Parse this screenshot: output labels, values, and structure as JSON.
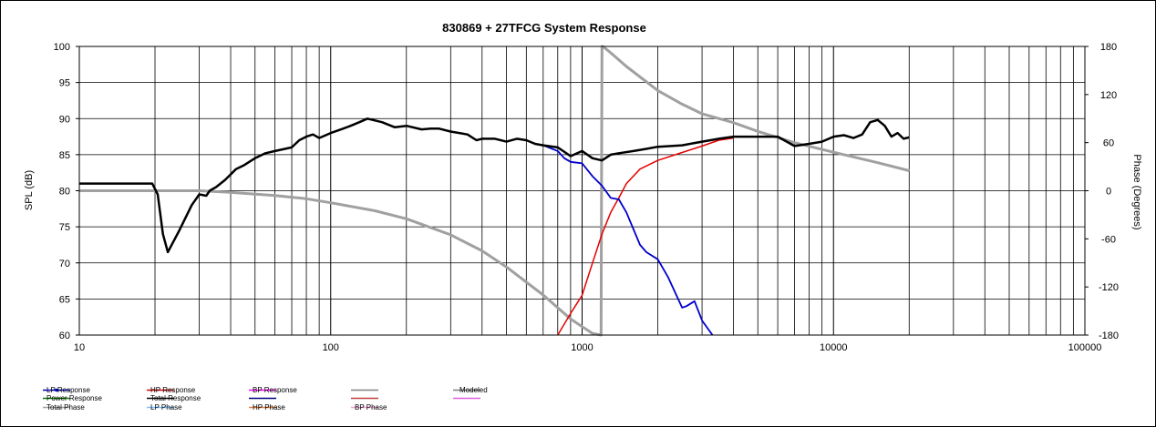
{
  "chart_data": {
    "type": "line",
    "title": "830869 + 27TFCG     System Response",
    "ylabel": "SPL (dB)",
    "y2label": "Phase (Degrees)",
    "xscale": "log",
    "xlim": [
      10,
      100000
    ],
    "ylim": [
      60,
      100
    ],
    "y2lim": [
      -180,
      180
    ],
    "x_ticks": [
      10,
      100,
      1000,
      10000,
      100000
    ],
    "x_tick_labels": [
      "10",
      "100",
      "1000",
      "10000",
      "100000"
    ],
    "y_ticks": [
      60,
      65,
      70,
      75,
      80,
      85,
      90,
      95,
      100
    ],
    "y_tick_labels": [
      "60",
      "65",
      "70",
      "75",
      "80",
      "85",
      "90",
      "95",
      "100"
    ],
    "y2_ticks": [
      -180,
      -120,
      -60,
      0,
      60,
      120,
      180
    ],
    "y2_tick_labels": [
      "-180",
      "-120",
      "-60",
      "0",
      "60",
      "120",
      "180"
    ],
    "grid": true,
    "legend_position": "bottom",
    "legend": [
      {
        "name": "LP Response",
        "color": "#0000cc",
        "marker": true
      },
      {
        "name": "HP Response",
        "color": "#e60000",
        "marker": false
      },
      {
        "name": "BP Response",
        "color": "#ff00ff",
        "marker": false
      },
      {
        "name": "",
        "color": "#808080",
        "marker": false
      },
      {
        "name": "Modeled",
        "color": "#808080",
        "marker": false
      },
      {
        "name": "Power Response",
        "color": "#008000",
        "marker": false
      },
      {
        "name": "Total Response",
        "color": "#000000",
        "marker": false
      },
      {
        "name": "",
        "color": "#000080",
        "marker": false
      },
      {
        "name": "",
        "color": "#c04040",
        "marker": false
      },
      {
        "name": "",
        "color": "#e060e0",
        "marker": false
      },
      {
        "name": "Total Phase",
        "color": "#a0a0a0",
        "marker": false
      },
      {
        "name": "LP Phase",
        "color": "#80c0ff",
        "marker": false
      },
      {
        "name": "HP Phase",
        "color": "#e08040",
        "marker": false
      },
      {
        "name": "BP Phase",
        "color": "#f0a0d0",
        "marker": false
      }
    ],
    "series": [
      {
        "name": "Total Response",
        "axis": "left",
        "color": "#000000",
        "width": 2.5,
        "x": [
          10,
          19.5,
          20.5,
          21.5,
          22.5,
          25,
          28,
          30,
          32,
          33,
          35,
          38,
          42,
          45,
          50,
          55,
          60,
          70,
          75,
          80,
          85,
          90,
          100,
          110,
          120,
          130,
          140,
          160,
          180,
          200,
          230,
          250,
          270,
          300,
          350,
          380,
          400,
          450,
          500,
          550,
          600,
          650,
          700,
          800,
          900,
          1000,
          1100,
          1200,
          1300,
          1400,
          1600,
          1800,
          2000,
          2500,
          3000,
          3500,
          4000,
          5000,
          6000,
          7000,
          8000,
          9000,
          10000,
          11000,
          12000,
          13000,
          14000,
          15000,
          16000,
          17000,
          18000,
          19000,
          20000
        ],
        "y": [
          81,
          81,
          79.5,
          74,
          71.5,
          74.5,
          78,
          79.5,
          79.3,
          80,
          80.5,
          81.5,
          83,
          83.5,
          84.5,
          85.2,
          85.5,
          86,
          87,
          87.5,
          87.8,
          87.3,
          88,
          88.5,
          89,
          89.5,
          90,
          89.5,
          88.8,
          89,
          88.5,
          88.6,
          88.6,
          88.2,
          87.8,
          87,
          87.2,
          87.2,
          86.8,
          87.2,
          87,
          86.5,
          86.3,
          86,
          84.8,
          85.5,
          84.5,
          84.2,
          85,
          85.2,
          85.5,
          85.8,
          86.1,
          86.3,
          86.8,
          87.2,
          87.5,
          87.5,
          87.5,
          86.2,
          86.5,
          86.8,
          87.5,
          87.7,
          87.3,
          87.8,
          89.5,
          89.8,
          89,
          87.5,
          88,
          87.2,
          87.4
        ]
      },
      {
        "name": "LP Response",
        "axis": "left",
        "color": "#0000cc",
        "width": 1.8,
        "x": [
          700,
          800,
          850,
          900,
          1000,
          1100,
          1200,
          1300,
          1400,
          1500,
          1700,
          1800,
          2000,
          2200,
          2500,
          2600,
          2800,
          3000,
          3300
        ],
        "y": [
          86.3,
          85.5,
          84.5,
          84,
          83.8,
          82,
          80.7,
          79,
          78.8,
          77,
          72.5,
          71.5,
          70.5,
          68,
          63.8,
          64,
          64.7,
          62,
          60
        ]
      },
      {
        "name": "HP Response",
        "axis": "left",
        "color": "#e60000",
        "width": 1.5,
        "x": [
          800,
          900,
          1000,
          1100,
          1200,
          1300,
          1400,
          1500,
          1700,
          2000,
          2500,
          3000,
          3500,
          4000
        ],
        "y": [
          60,
          63,
          65.5,
          70,
          74,
          77,
          79,
          81,
          83,
          84.2,
          85.3,
          86.2,
          87,
          87.3
        ]
      },
      {
        "name": "Total Phase",
        "axis": "right",
        "color": "#a0a0a0",
        "width": 3,
        "x": [
          10,
          30,
          40,
          60,
          80,
          100,
          150,
          200,
          300,
          400,
          500,
          700,
          900,
          1100,
          1190,
          1195,
          1200,
          1210,
          1300,
          1500,
          2000,
          2500,
          3000,
          4000,
          5000,
          7000,
          10000,
          15000,
          20000
        ],
        "y": [
          0,
          0,
          -2,
          -6,
          -10,
          -15,
          -25,
          -35,
          -55,
          -75,
          -95,
          -130,
          -160,
          -178,
          -180,
          0,
          180,
          180,
          172,
          155,
          125,
          108,
          96,
          85,
          74,
          60,
          48,
          35,
          25
        ]
      }
    ]
  }
}
